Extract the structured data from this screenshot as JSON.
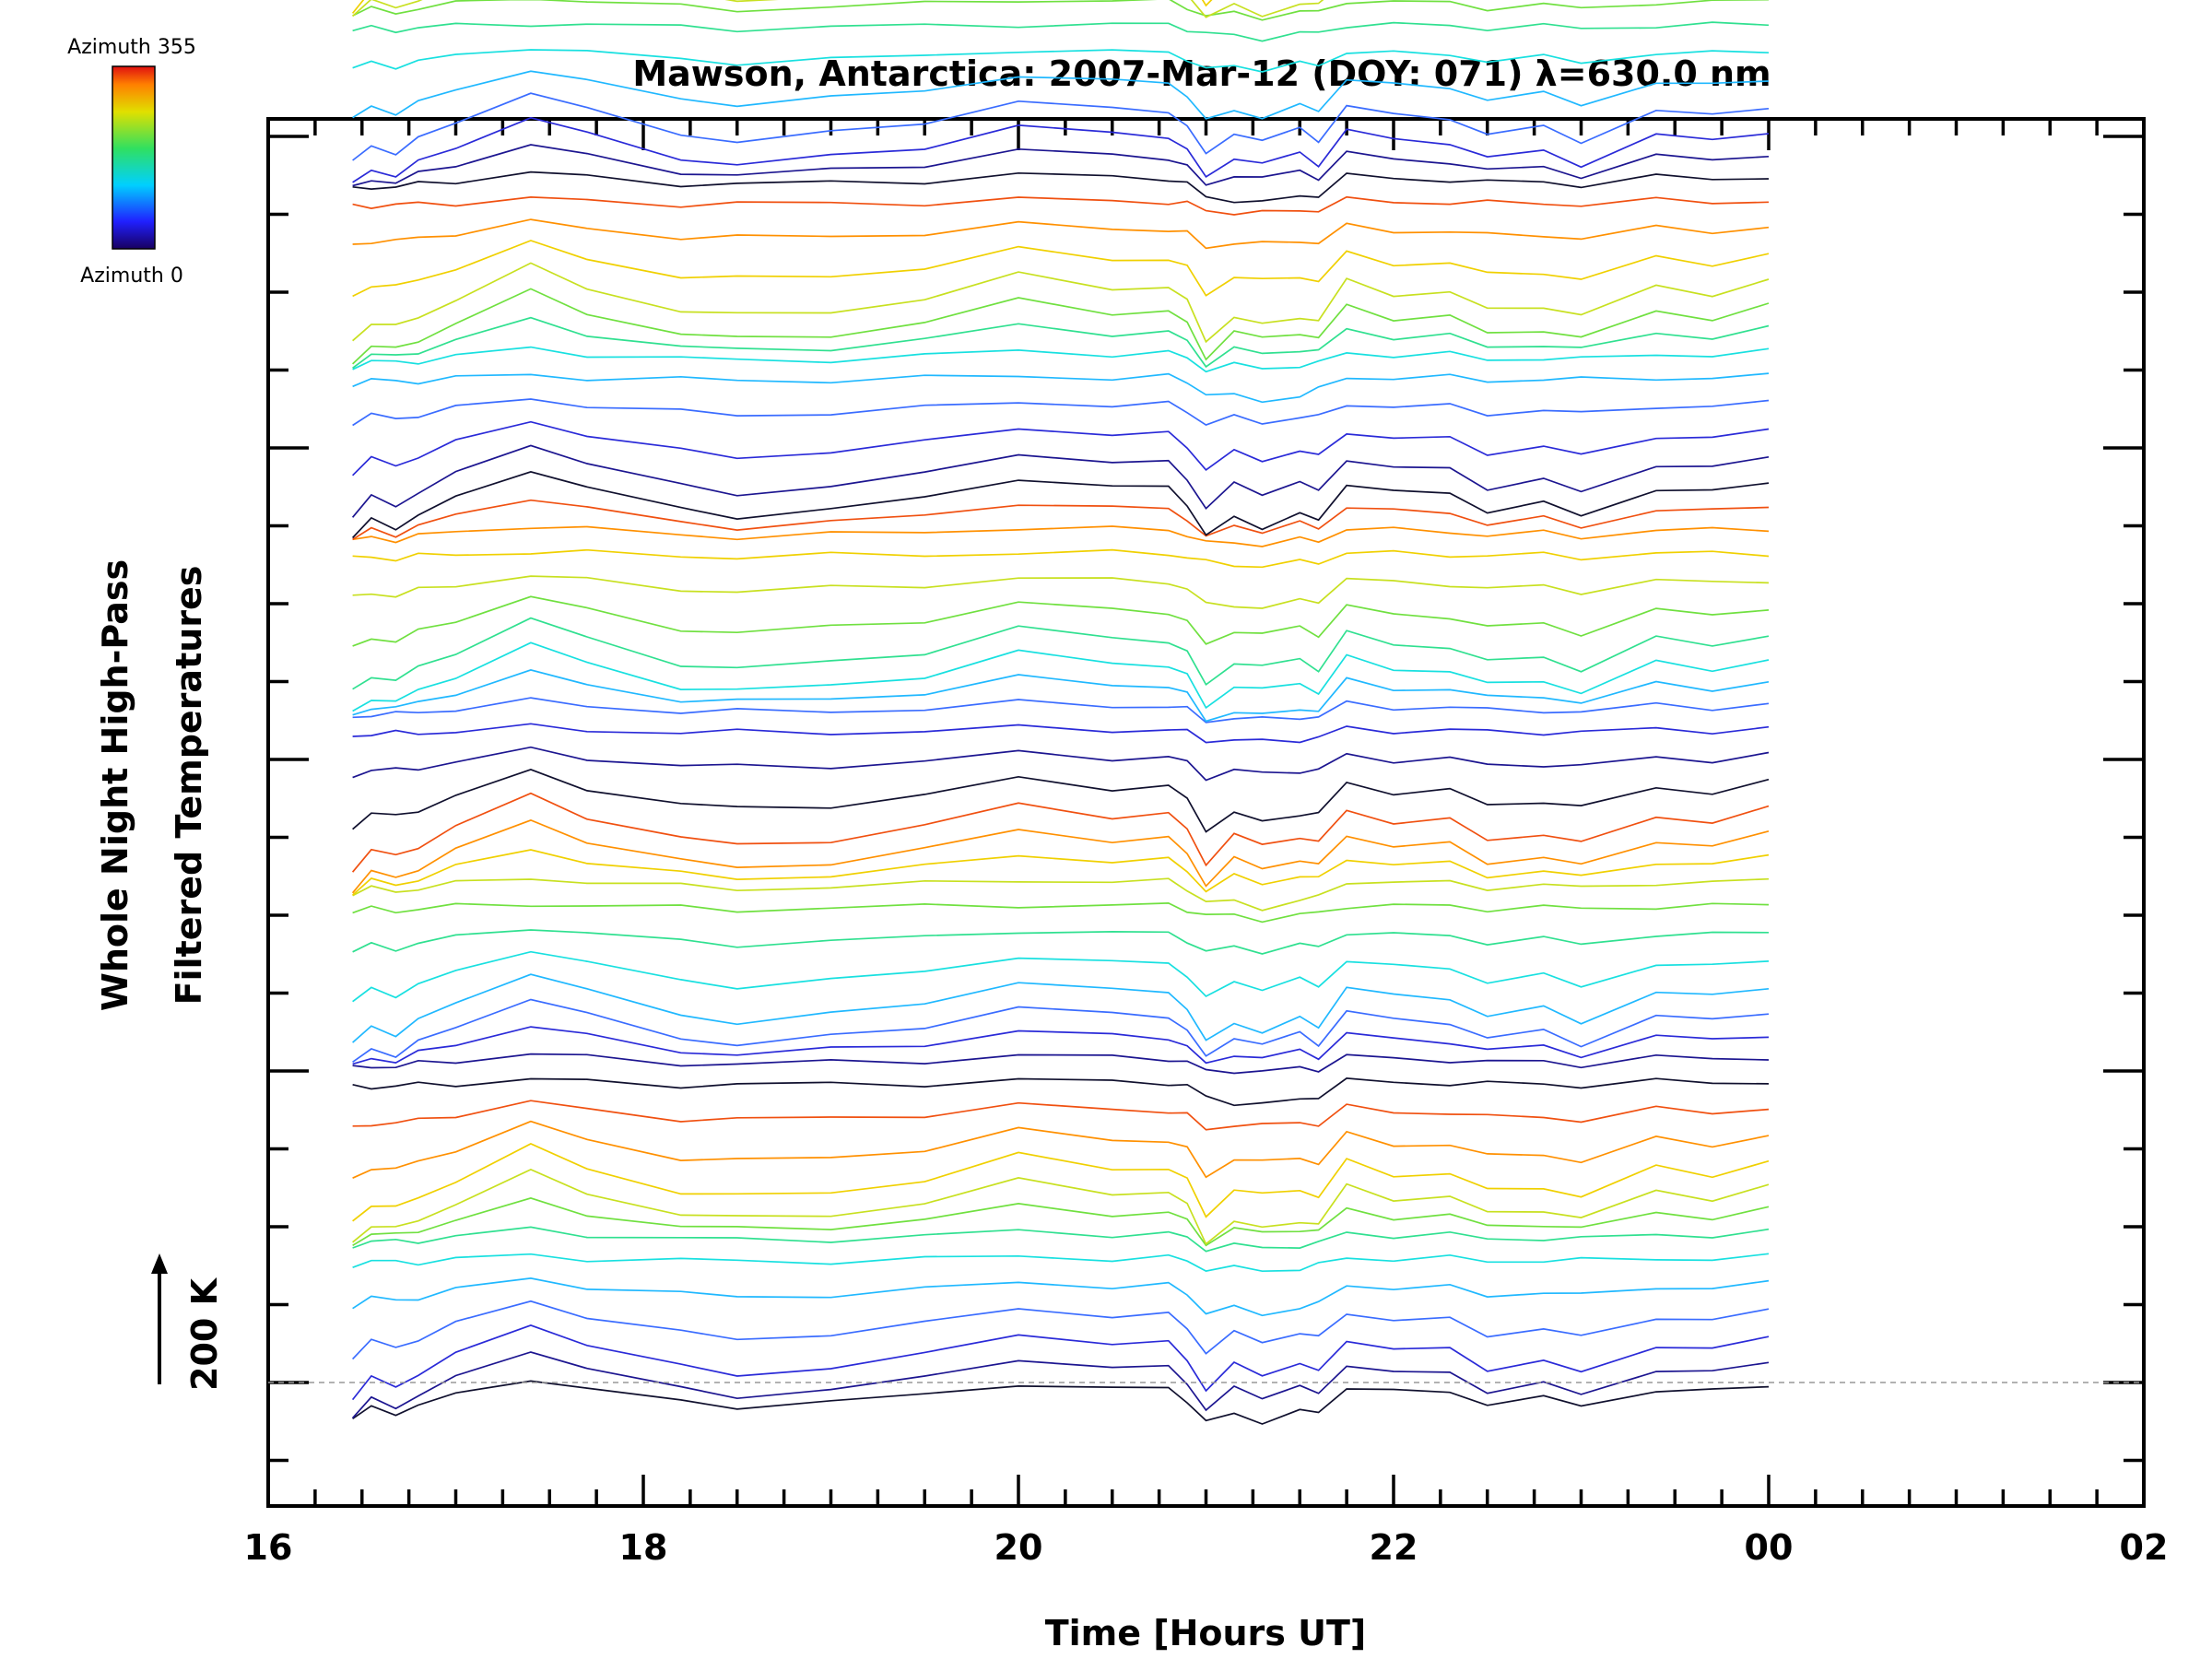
{
  "chart_data": {
    "type": "line",
    "title": "Mawson, Antarctica: 2007-Mar-12 (DOY: 071) λ=630.0 nm",
    "xlabel": "Time [Hours UT]",
    "ylabel_line1": "Whole Night High-Pass",
    "ylabel_line2": "Filtered Temperatures",
    "scale_label": "200 K",
    "colorbar": {
      "top_label": "Azimuth 355",
      "bottom_label": "Azimuth 0"
    },
    "x_tick_labels": [
      "16",
      "18",
      "20",
      "22",
      "00",
      "02"
    ],
    "xlim": [
      16,
      26
    ],
    "x_start": 16.45,
    "x_end": 24.0,
    "series_count": 60,
    "series_offset_K": 50,
    "baseline_dashed": true,
    "x_samples": [
      16.45,
      16.55,
      16.68,
      16.8,
      17.0,
      17.4,
      17.7,
      18.2,
      18.5,
      19.0,
      19.5,
      20.0,
      20.5,
      20.8,
      20.9,
      21.0,
      21.15,
      21.3,
      21.5,
      21.6,
      21.75,
      22.0,
      22.3,
      22.5,
      22.8,
      23.0,
      23.4,
      23.7,
      24.0
    ],
    "waveform_K": [
      -110,
      -80,
      -90,
      -70,
      -40,
      15,
      -20,
      -60,
      -70,
      -60,
      -40,
      0,
      -20,
      -20,
      -40,
      -90,
      -40,
      -50,
      -40,
      -60,
      -10,
      -30,
      -30,
      -60,
      -50,
      -70,
      -20,
      -30,
      -10
    ]
  }
}
